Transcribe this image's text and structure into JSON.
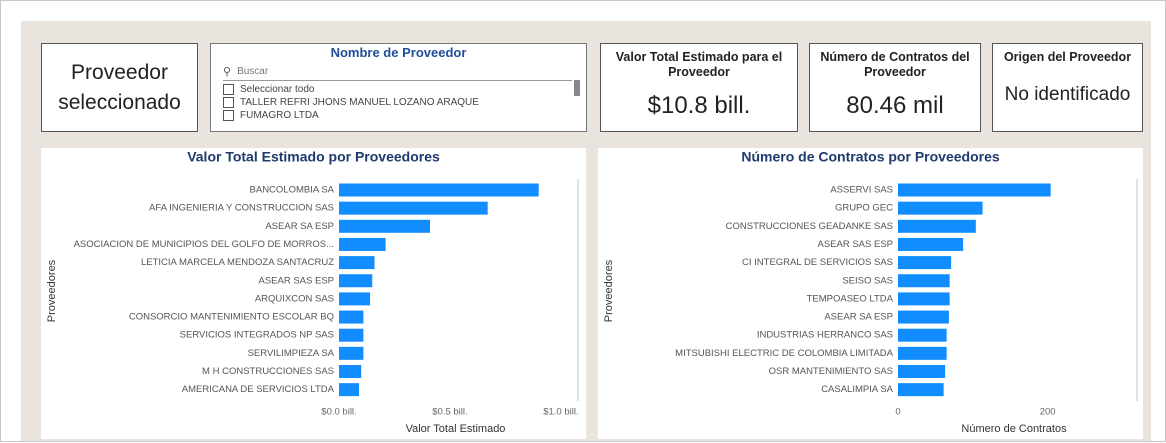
{
  "selected_card": {
    "text": "Proveedor seleccionado"
  },
  "slicer": {
    "title": "Nombre de Proveedor",
    "search": "Buscar",
    "items": [
      "Seleccionar todo",
      "TALLER REFRI JHONS MANUEL LOZANO ARAQUE",
      "FUMAGRO LTDA"
    ]
  },
  "cards": [
    {
      "title": "Valor Total Estimado para el Proveedor",
      "value": "$10.8 bill."
    },
    {
      "title": "Número de Contratos del Proveedor",
      "value": "80.46 mil"
    },
    {
      "title": "Origen del Proveedor",
      "value": "No identificado"
    }
  ],
  "chart_data": [
    {
      "type": "barh",
      "title": "Valor Total Estimado por Proveedores",
      "x_label": "Valor Total Estimado",
      "y_label": "Proveedores",
      "categories": [
        "BANCOLOMBIA SA",
        "AFA INGENIERIA Y CONSTRUCCION SAS",
        "ASEAR SA ESP",
        "ASOCIACION DE MUNICIPIOS DEL GOLFO DE MORROS...",
        "LETICIA MARCELA MENDOZA SANTACRUZ",
        "ASEAR SAS ESP",
        "ARQUIXCON SAS",
        "CONSORCIO MANTENIMIENTO ESCOLAR BQ",
        "SERVICIOS INTEGRADOS NP SAS",
        "SERVILIMPIEZA SA",
        "M H CONSTRUCCIONES SAS",
        "AMERICANA DE SERVICIOS LTDA"
      ],
      "values": [
        0.9,
        0.67,
        0.41,
        0.21,
        0.16,
        0.15,
        0.14,
        0.11,
        0.11,
        0.11,
        0.1,
        0.09
      ],
      "color": "#118dff",
      "xlim": [
        0,
        1.05
      ],
      "xticks": [
        {
          "value": 0,
          "label": "$0.0 bill."
        },
        {
          "value": 0.5,
          "label": "$0.5 bill."
        },
        {
          "value": 1,
          "label": "$1.0 bill."
        }
      ]
    },
    {
      "type": "barh",
      "title": "Número de Contratos por Proveedores",
      "x_label": "Número de Contratos",
      "y_label": "Proveedores",
      "categories": [
        "ASSERVI SAS",
        "GRUPO GEC",
        "CONSTRUCCIONES GEADANKE SAS",
        "ASEAR SAS ESP",
        "CI INTEGRAL DE SERVICIOS SAS",
        "SEISO SAS",
        "TEMPOASEO LTDA",
        "ASEAR SA ESP",
        "INDUSTRIAS HERRANCO SAS",
        "MITSUBISHI ELECTRIC DE COLOMBIA LIMITADA",
        "OSR MANTENIMIENTO SAS",
        "CASALIMPIA SA"
      ],
      "values": [
        204,
        113,
        104,
        87,
        71,
        69,
        69,
        68,
        65,
        65,
        63,
        61
      ],
      "color": "#118dff",
      "xlim": [
        0,
        310
      ],
      "xticks": [
        0,
        200
      ]
    }
  ]
}
